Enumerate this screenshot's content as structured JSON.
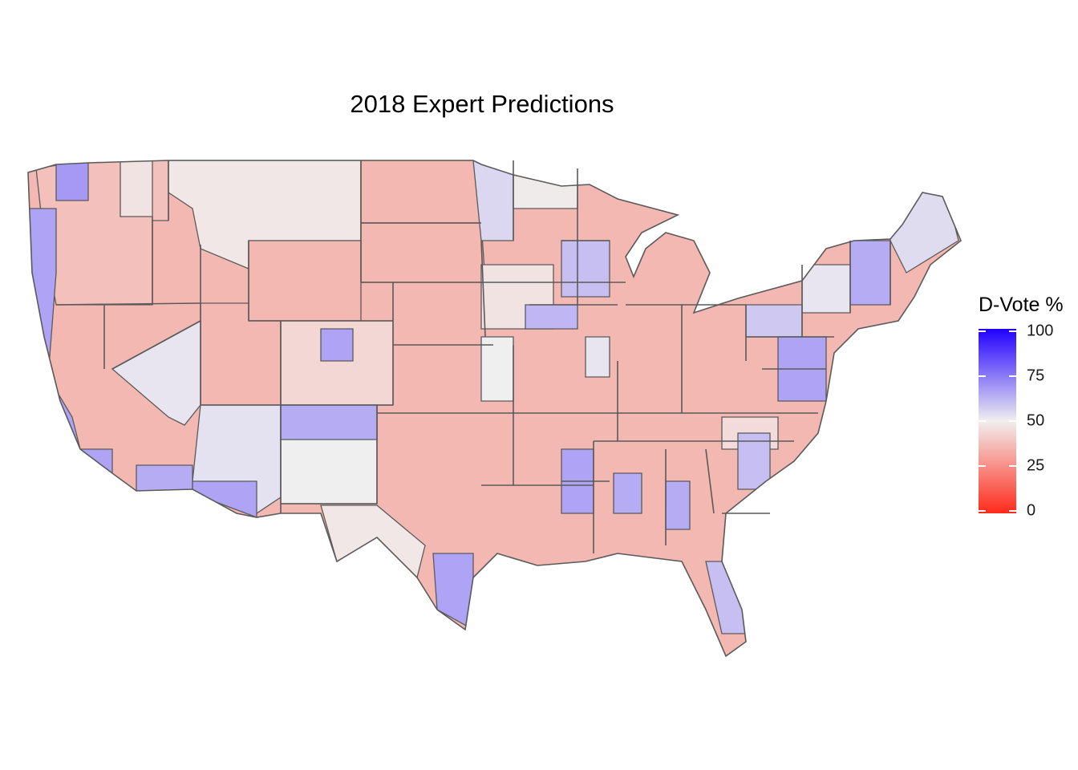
{
  "title": "2018 Expert Predictions",
  "legend": {
    "title": "D-Vote %",
    "ticks": [
      "100",
      "75",
      "50",
      "25",
      "0"
    ],
    "tick_values": [
      100,
      75,
      50,
      25,
      0
    ],
    "range": [
      0,
      100
    ],
    "colors": {
      "low": "#ff2a1a",
      "mid": "#f0efef",
      "high": "#2200ff"
    }
  },
  "map": {
    "region": "contiguous-united-states",
    "unit": "congressional-district",
    "border_color": "#5a5a5a",
    "background": "#ffffff"
  }
}
